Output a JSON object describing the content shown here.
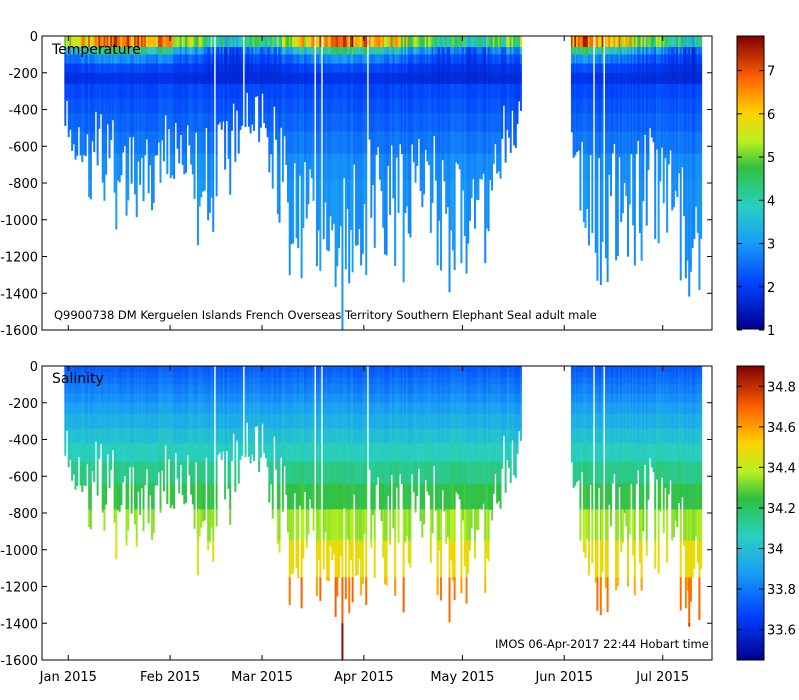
{
  "chart_data": {
    "type": "heatmap",
    "x_tick_labels": [
      "Jan 2015",
      "Feb 2015",
      "Mar 2015",
      "Apr 2015",
      "May 2015",
      "Jun 2015",
      "Jul 2015"
    ],
    "x_tick_days": [
      0,
      31,
      59,
      90,
      120,
      151,
      181
    ],
    "x_range_days": [
      -8,
      196
    ],
    "gap_days": [
      138,
      153
    ],
    "panels": [
      {
        "title": "Temperature",
        "variable": "temperature",
        "ylim": [
          -1600,
          0
        ],
        "y_ticks": [
          0,
          -200,
          -400,
          -600,
          -800,
          -1000,
          -1200,
          -1400,
          -1600
        ],
        "y_tick_labels": [
          "0",
          "-200",
          "-400",
          "-600",
          "-800",
          "-1000",
          "-1200",
          "-1400",
          "-1600"
        ],
        "colorbar_range": [
          1,
          7.8
        ],
        "colorbar_ticks": [
          1,
          2,
          3,
          4,
          5,
          6,
          7
        ],
        "colorbar_tick_labels": [
          "1",
          "2",
          "3",
          "4",
          "5",
          "6",
          "7"
        ],
        "annotation": "Q9900738 DM Kerguelen Islands French Overseas Territory Southern Elephant Seal adult male"
      },
      {
        "title": "Salinity",
        "variable": "salinity",
        "ylim": [
          -1600,
          0
        ],
        "y_ticks": [
          0,
          -200,
          -400,
          -600,
          -800,
          -1000,
          -1200,
          -1400,
          -1600
        ],
        "y_tick_labels": [
          "0",
          "-200",
          "-400",
          "-600",
          "-800",
          "-1000",
          "-1200",
          "-1400",
          "-1600"
        ],
        "colorbar_range": [
          33.45,
          34.9
        ],
        "colorbar_ticks": [
          33.6,
          33.8,
          34,
          34.2,
          34.4,
          34.6,
          34.8
        ],
        "colorbar_tick_labels": [
          "33.6",
          "33.8",
          "34",
          "34.2",
          "34.4",
          "34.6",
          "34.8"
        ],
        "annotation": "IMOS 06-Apr-2017 22:44 Hobart time"
      }
    ],
    "dive_depth_profile": {
      "day": [
        -2,
        3,
        8,
        13,
        18,
        23,
        28,
        33,
        38,
        43,
        48,
        53,
        56,
        59,
        63,
        68,
        73,
        78,
        83,
        88,
        93,
        98,
        103,
        108,
        113,
        118,
        123,
        128,
        133,
        136,
        154,
        158,
        163,
        168,
        173,
        178,
        183,
        188,
        191
      ],
      "max_depth": [
        550,
        700,
        800,
        900,
        950,
        1000,
        850,
        800,
        1000,
        950,
        800,
        550,
        500,
        500,
        800,
        1200,
        1100,
        1300,
        1400,
        1250,
        1000,
        1050,
        1200,
        1000,
        1100,
        1300,
        1000,
        1100,
        700,
        600,
        800,
        1100,
        1200,
        1000,
        1100,
        950,
        1050,
        1400,
        1200
      ]
    }
  }
}
